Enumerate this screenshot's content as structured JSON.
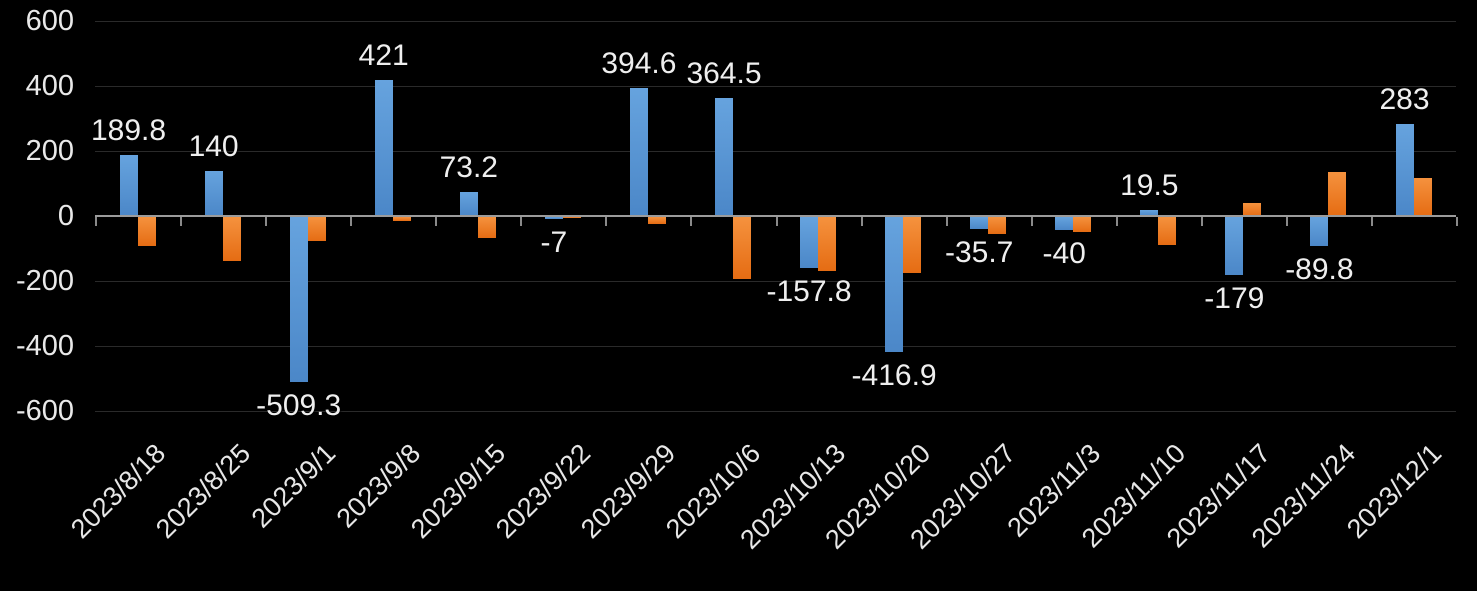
{
  "chart_data": {
    "type": "bar",
    "title": "",
    "subtitle": "",
    "legend": "none",
    "grid": true,
    "categories": [
      "2023/8/18",
      "2023/8/25",
      "2023/9/1",
      "2023/9/8",
      "2023/9/15",
      "2023/9/22",
      "2023/9/29",
      "2023/10/6",
      "2023/10/13",
      "2023/10/20",
      "2023/10/27",
      "2023/11/3",
      "2023/11/10",
      "2023/11/17",
      "2023/11/24",
      "2023/12/1"
    ],
    "series": [
      {
        "name": "blue-series",
        "color": "#5B9BD5",
        "values": [
          189.8,
          140,
          -509.3,
          421,
          73.2,
          -7,
          394.6,
          364.5,
          -157.8,
          -416.9,
          -35.7,
          -40,
          19.5,
          -179,
          -89.8,
          283
        ],
        "labels": [
          "189.8",
          "140",
          "-509.3",
          "421",
          "73.2",
          "-7",
          "394.6",
          "364.5",
          "-157.8",
          "-416.9",
          "-35.7",
          "-40",
          "19.5",
          "-179",
          "-89.8",
          "283"
        ]
      },
      {
        "name": "orange-series",
        "color": "#ED7D31",
        "values": [
          -90,
          -135,
          -73,
          -12,
          -65,
          -2,
          -20,
          -190,
          -165,
          -172,
          -52,
          -46,
          -85,
          40,
          136,
          116
        ],
        "labels": []
      }
    ],
    "y_axis": {
      "ticks": [
        600,
        400,
        200,
        0,
        -200,
        -400,
        -600
      ],
      "tick_labels": [
        "600",
        "400",
        "200",
        "0",
        "-200",
        "-400",
        "-600"
      ],
      "ylim": [
        -600,
        600
      ]
    },
    "x_axis": {
      "label_rotation_deg": -45
    },
    "colors": {
      "background": "#000000",
      "text": "#eaeaea",
      "gridline": "#2a2a2a",
      "axis_line": "#9b9b9b",
      "bar_blue": "#5B9BD5",
      "bar_orange": "#ED7D31"
    }
  }
}
